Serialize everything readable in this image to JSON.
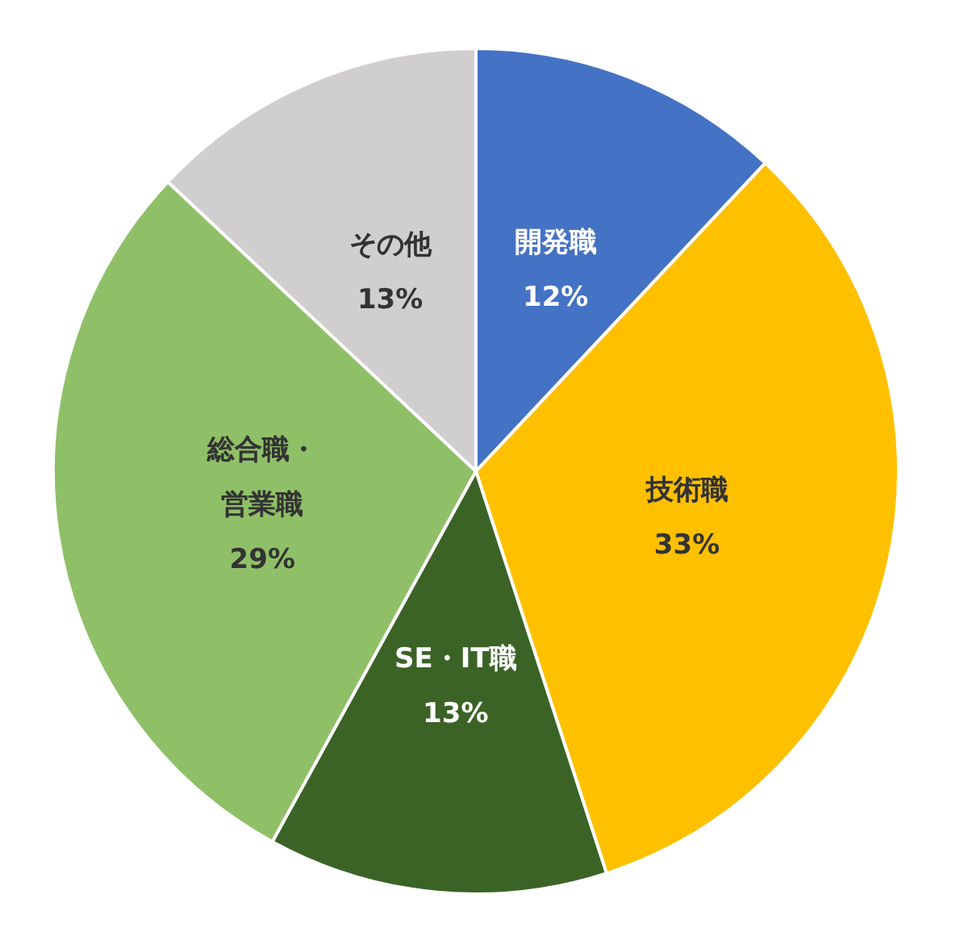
{
  "chart_data": {
    "type": "pie",
    "categories": [
      "開発職",
      "技術職",
      "SE・IT職",
      "総合職・営業職",
      "その他"
    ],
    "values": [
      12,
      33,
      13,
      29,
      13
    ],
    "value_labels": [
      "12%",
      "33%",
      "13%",
      "29%",
      "13%"
    ],
    "colors": [
      "#4472c4",
      "#ffc000",
      "#3b6326",
      "#8fc068",
      "#d0cece"
    ],
    "legend": false
  }
}
